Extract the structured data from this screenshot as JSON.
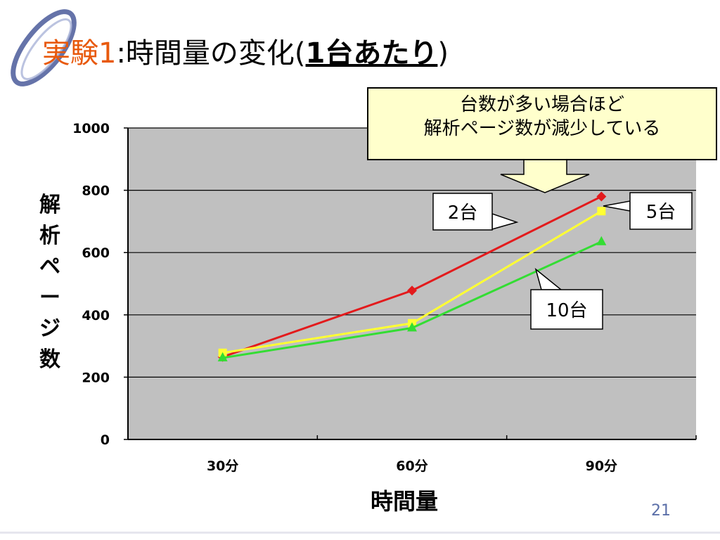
{
  "title": {
    "prefix": "実験1",
    "middle": ":時間量の変化(",
    "emphasis": "1台あたり",
    "suffix": ")"
  },
  "callout": {
    "line1": "台数が多い場合ほど",
    "line2": "解析ページ数が減少している"
  },
  "page_number": "21",
  "colors": {
    "accent": "#e8590c",
    "plot_bg": "#c0c0c0",
    "series_2": "#e31a1c",
    "series_5": "#ffff33",
    "series_10": "#33dd33"
  },
  "chart_data": {
    "type": "line",
    "xlabel": "時間量",
    "ylabel": "解析ページ数",
    "categories": [
      "30分",
      "60分",
      "90分"
    ],
    "ylim": [
      0,
      1000
    ],
    "yticks": [
      0,
      200,
      400,
      600,
      800,
      1000
    ],
    "grid": true,
    "series": [
      {
        "name": "2台",
        "values": [
          265,
          478,
          780
        ],
        "marker": "diamond"
      },
      {
        "name": "5台",
        "values": [
          278,
          373,
          733
        ],
        "marker": "square"
      },
      {
        "name": "10台",
        "values": [
          262,
          358,
          635
        ],
        "marker": "triangle"
      }
    ]
  }
}
